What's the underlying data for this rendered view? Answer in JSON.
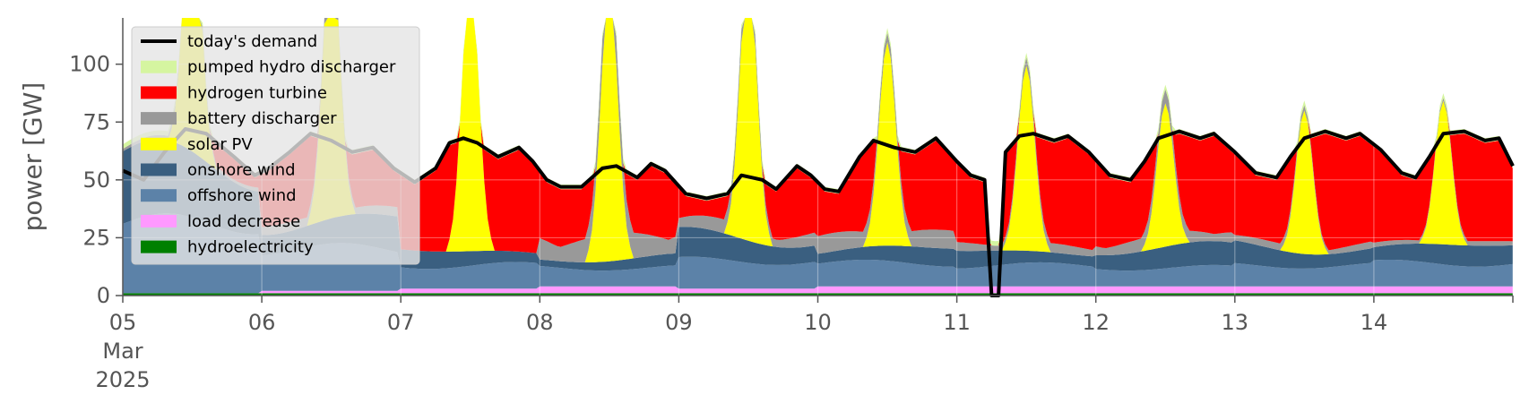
{
  "chart_data": {
    "type": "area",
    "title": "",
    "xlabel": "",
    "ylabel": "power [GW]",
    "ylim": [
      0,
      120
    ],
    "yticks": [
      0,
      25,
      50,
      75,
      100
    ],
    "x_start": "05 Mar 2025 00:00",
    "x_end": "15 Mar 2025 00:00",
    "xtick_labels": [
      {
        "label": "05",
        "sub1": "Mar",
        "sub2": "2025"
      },
      {
        "label": "06"
      },
      {
        "label": "07"
      },
      {
        "label": "08"
      },
      {
        "label": "09"
      },
      {
        "label": "10"
      },
      {
        "label": "11"
      },
      {
        "label": "12"
      },
      {
        "label": "13"
      },
      {
        "label": "14"
      }
    ],
    "grid": true,
    "legend_position": "top-left",
    "legend": [
      {
        "name": "today's demand",
        "kind": "line",
        "color": "#000000"
      },
      {
        "name": "pumped hydro discharger",
        "kind": "patch",
        "color": "#d5f5a0"
      },
      {
        "name": "hydrogen turbine",
        "kind": "patch",
        "color": "#ff0000"
      },
      {
        "name": "battery discharger",
        "kind": "patch",
        "color": "#999999"
      },
      {
        "name": "solar PV",
        "kind": "patch",
        "color": "#ffff00"
      },
      {
        "name": "onshore wind",
        "kind": "patch",
        "color": "#3a5f80"
      },
      {
        "name": "offshore wind",
        "kind": "patch",
        "color": "#5c82a8"
      },
      {
        "name": "load decrease",
        "kind": "patch",
        "color": "#ff99ff"
      },
      {
        "name": "hydroelectricity",
        "kind": "patch",
        "color": "#008000"
      }
    ],
    "stack_order": [
      "hydroelectricity",
      "load decrease",
      "offshore wind",
      "onshore wind",
      "solar PV",
      "battery discharger",
      "hydrogen turbine",
      "pumped hydro discharger"
    ],
    "day_series": {
      "hydroelectricity": [
        1,
        1,
        1,
        1,
        1,
        1,
        1,
        1,
        1,
        1
      ],
      "load decrease": [
        0,
        1,
        2,
        3,
        2,
        3,
        3,
        3,
        3,
        3
      ],
      "offshore wind": [
        30,
        18,
        10,
        8,
        12,
        10,
        9,
        8,
        9,
        10
      ],
      "onshore wind": [
        25,
        12,
        6,
        4,
        10,
        6,
        6,
        8,
        8,
        7
      ],
      "solar PV peak": [
        120,
        120,
        120,
        120,
        120,
        88,
        80,
        62,
        62,
        62
      ],
      "battery discharger": [
        2,
        4,
        0,
        12,
        6,
        8,
        4,
        6,
        3,
        2
      ]
    },
    "demand": [
      [
        0,
        54
      ],
      [
        0.15,
        50
      ],
      [
        0.3,
        62
      ],
      [
        0.45,
        72
      ],
      [
        0.6,
        70
      ],
      [
        0.8,
        60
      ],
      [
        0.95,
        52
      ],
      [
        1.05,
        55
      ],
      [
        1.2,
        62
      ],
      [
        1.35,
        70
      ],
      [
        1.5,
        67
      ],
      [
        1.65,
        62
      ],
      [
        1.8,
        64
      ],
      [
        1.95,
        55
      ],
      [
        2.1,
        49
      ],
      [
        2.25,
        55
      ],
      [
        2.35,
        66
      ],
      [
        2.45,
        68
      ],
      [
        2.55,
        66
      ],
      [
        2.7,
        60
      ],
      [
        2.85,
        64
      ],
      [
        2.95,
        58
      ],
      [
        3.05,
        50
      ],
      [
        3.15,
        47
      ],
      [
        3.3,
        47
      ],
      [
        3.45,
        55
      ],
      [
        3.55,
        56
      ],
      [
        3.7,
        51
      ],
      [
        3.8,
        57
      ],
      [
        3.9,
        54
      ],
      [
        4.05,
        44
      ],
      [
        4.2,
        42
      ],
      [
        4.35,
        44
      ],
      [
        4.45,
        52
      ],
      [
        4.6,
        50
      ],
      [
        4.7,
        46
      ],
      [
        4.85,
        56
      ],
      [
        4.95,
        52
      ],
      [
        5.05,
        46
      ],
      [
        5.15,
        45
      ],
      [
        5.3,
        60
      ],
      [
        5.4,
        67
      ],
      [
        5.55,
        64
      ],
      [
        5.7,
        62
      ],
      [
        5.85,
        68
      ],
      [
        6.0,
        58
      ],
      [
        6.1,
        52
      ],
      [
        6.2,
        50
      ],
      [
        6.25,
        0
      ],
      [
        6.3,
        0
      ],
      [
        6.35,
        62
      ],
      [
        6.45,
        69
      ],
      [
        6.55,
        70
      ],
      [
        6.7,
        67
      ],
      [
        6.8,
        69
      ],
      [
        6.95,
        62
      ],
      [
        7.1,
        52
      ],
      [
        7.25,
        50
      ],
      [
        7.35,
        58
      ],
      [
        7.45,
        68
      ],
      [
        7.6,
        71
      ],
      [
        7.75,
        68
      ],
      [
        7.85,
        70
      ],
      [
        8.0,
        62
      ],
      [
        8.15,
        53
      ],
      [
        8.3,
        51
      ],
      [
        8.4,
        60
      ],
      [
        8.5,
        68
      ],
      [
        8.65,
        71
      ],
      [
        8.8,
        68
      ],
      [
        8.9,
        70
      ],
      [
        9.05,
        63
      ],
      [
        9.2,
        53
      ],
      [
        9.3,
        51
      ],
      [
        9.4,
        60
      ],
      [
        9.5,
        70
      ],
      [
        9.65,
        71
      ],
      [
        9.8,
        67
      ],
      [
        9.9,
        68
      ],
      [
        10.0,
        56
      ]
    ]
  }
}
